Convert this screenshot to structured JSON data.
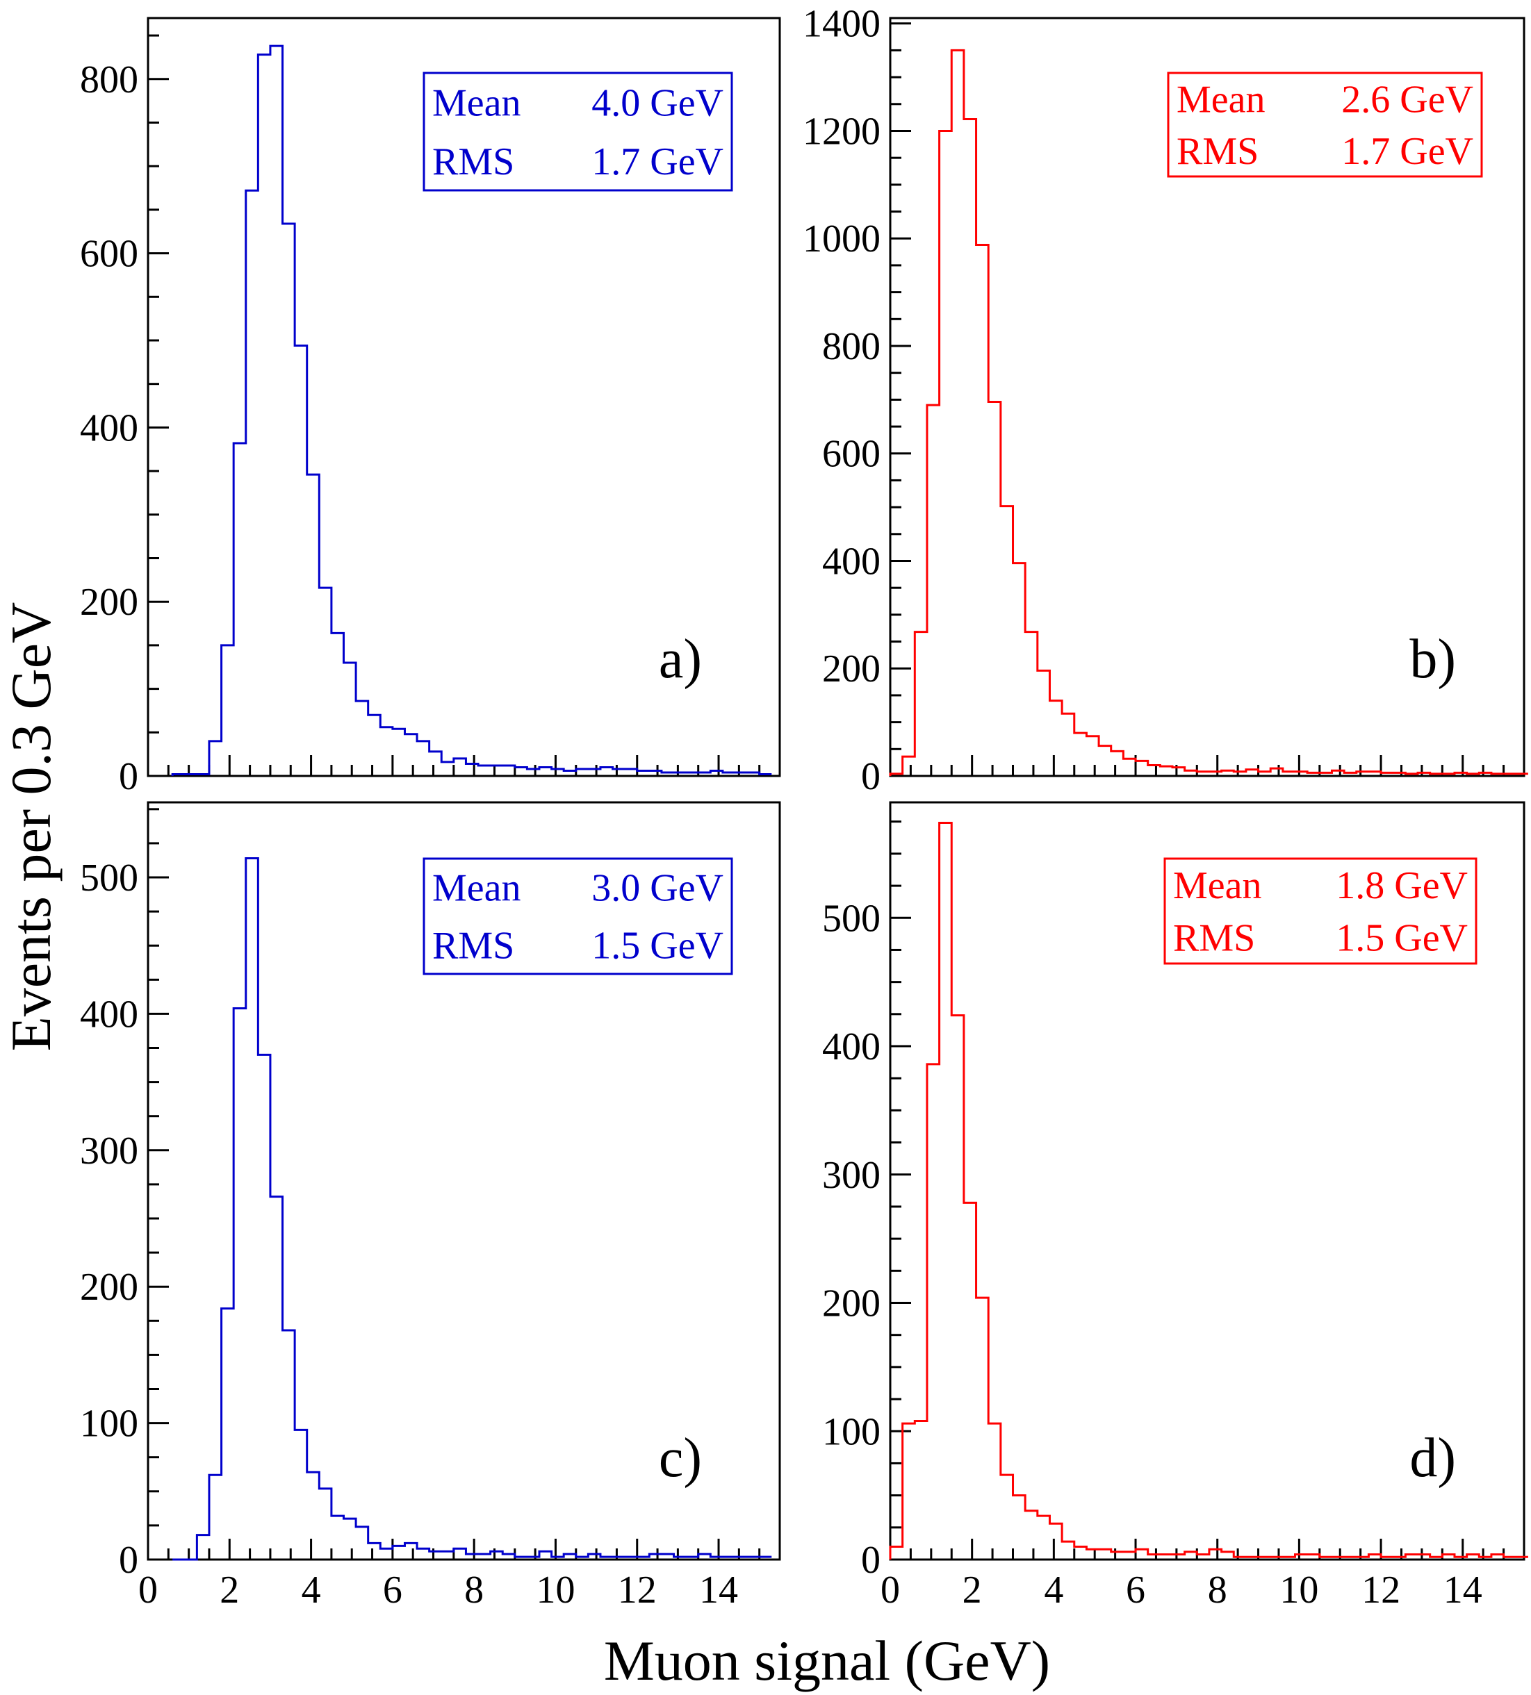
{
  "figure": {
    "ylabel": "Events per 0.3 GeV",
    "xlabel": "Muon signal (GeV)"
  },
  "chart_data": [
    {
      "type": "histogram",
      "panel_label": "a)",
      "color": "#0000cc",
      "bin_width": 0.3,
      "x_start": 0.6,
      "xlim": [
        0,
        15.5
      ],
      "ylim": [
        0,
        870
      ],
      "yticks": [
        0,
        200,
        400,
        600,
        800
      ],
      "xticks": [
        0,
        2,
        4,
        6,
        8,
        10,
        12,
        14
      ],
      "stats": {
        "mean_label": "Mean",
        "mean_value": "4.0 GeV",
        "rms_label": "RMS",
        "rms_value": "1.7 GeV"
      },
      "values": [
        2,
        2,
        2,
        40,
        150,
        382,
        672,
        828,
        838,
        634,
        494,
        346,
        216,
        164,
        130,
        86,
        70,
        56,
        54,
        48,
        40,
        28,
        16,
        20,
        14,
        12,
        12,
        12,
        10,
        8,
        10,
        8,
        6,
        8,
        8,
        10,
        8,
        8,
        6,
        6,
        4,
        4,
        4,
        4,
        6,
        4,
        4,
        4,
        2
      ]
    },
    {
      "type": "histogram",
      "panel_label": "b)",
      "color": "#ff0000",
      "bin_width": 0.3,
      "x_start": 0.0,
      "xlim": [
        0,
        15.5
      ],
      "ylim": [
        0,
        1410
      ],
      "yticks": [
        0,
        200,
        400,
        600,
        800,
        1000,
        1200,
        1400
      ],
      "xticks": [
        0,
        2,
        4,
        6,
        8,
        10,
        12,
        14
      ],
      "stats": {
        "mean_label": "Mean",
        "mean_value": "2.6 GeV",
        "rms_label": "RMS",
        "rms_value": "1.7 GeV"
      },
      "values": [
        4,
        36,
        268,
        690,
        1200,
        1350,
        1222,
        988,
        696,
        502,
        396,
        268,
        196,
        140,
        116,
        80,
        74,
        56,
        46,
        32,
        28,
        20,
        18,
        16,
        10,
        8,
        8,
        10,
        8,
        12,
        8,
        14,
        8,
        8,
        6,
        6,
        10,
        6,
        8,
        8,
        6,
        6,
        4,
        6,
        4,
        4,
        6,
        4,
        6,
        4,
        4,
        4
      ]
    },
    {
      "type": "histogram",
      "panel_label": "c)",
      "color": "#0000cc",
      "bin_width": 0.3,
      "x_start": 0.6,
      "xlim": [
        0,
        15.5
      ],
      "ylim": [
        0,
        555
      ],
      "yticks": [
        0,
        100,
        200,
        300,
        400,
        500
      ],
      "xticks": [
        0,
        2,
        4,
        6,
        8,
        10,
        12,
        14
      ],
      "stats": {
        "mean_label": "Mean",
        "mean_value": "3.0 GeV",
        "rms_label": "RMS",
        "rms_value": "1.5 GeV"
      },
      "values": [
        0,
        0,
        18,
        62,
        184,
        404,
        514,
        370,
        266,
        168,
        95,
        64,
        52,
        32,
        30,
        24,
        12,
        8,
        10,
        12,
        8,
        6,
        6,
        8,
        4,
        4,
        6,
        4,
        2,
        2,
        6,
        2,
        4,
        2,
        4,
        2,
        2,
        2,
        2,
        4,
        4,
        2,
        2,
        4,
        2,
        2,
        2,
        2,
        2
      ]
    },
    {
      "type": "histogram",
      "panel_label": "d)",
      "color": "#ff0000",
      "bin_width": 0.3,
      "x_start": 0.0,
      "xlim": [
        0,
        15.5
      ],
      "ylim": [
        0,
        590
      ],
      "yticks": [
        0,
        100,
        200,
        300,
        400,
        500
      ],
      "xticks": [
        0,
        2,
        4,
        6,
        8,
        10,
        12,
        14
      ],
      "stats": {
        "mean_label": "Mean",
        "mean_value": "1.8 GeV",
        "rms_label": "RMS",
        "rms_value": "1.5 GeV"
      },
      "values": [
        10,
        106,
        108,
        386,
        574,
        424,
        278,
        204,
        106,
        66,
        50,
        38,
        34,
        28,
        14,
        10,
        8,
        8,
        6,
        6,
        8,
        4,
        4,
        4,
        6,
        4,
        8,
        6,
        2,
        2,
        2,
        2,
        2,
        4,
        4,
        2,
        2,
        2,
        2,
        4,
        2,
        2,
        4,
        4,
        2,
        4,
        2,
        4,
        2,
        4,
        2,
        2
      ]
    }
  ]
}
